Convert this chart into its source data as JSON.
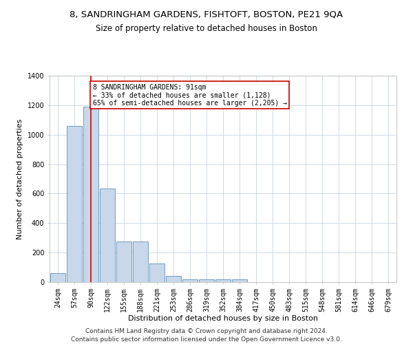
{
  "title1": "8, SANDRINGHAM GARDENS, FISHTOFT, BOSTON, PE21 9QA",
  "title2": "Size of property relative to detached houses in Boston",
  "xlabel": "Distribution of detached houses by size in Boston",
  "ylabel": "Number of detached properties",
  "footnote": "Contains HM Land Registry data © Crown copyright and database right 2024.\nContains public sector information licensed under the Open Government Licence v3.0.",
  "bin_labels": [
    "24sqm",
    "57sqm",
    "90sqm",
    "122sqm",
    "155sqm",
    "188sqm",
    "221sqm",
    "253sqm",
    "286sqm",
    "319sqm",
    "352sqm",
    "384sqm",
    "417sqm",
    "450sqm",
    "483sqm",
    "515sqm",
    "548sqm",
    "581sqm",
    "614sqm",
    "646sqm",
    "679sqm"
  ],
  "bar_values": [
    60,
    1060,
    1190,
    635,
    275,
    275,
    125,
    40,
    20,
    20,
    20,
    20,
    0,
    0,
    0,
    0,
    0,
    0,
    0,
    0,
    0
  ],
  "bar_color": "#c8d8ea",
  "bar_edge_color": "#6090b8",
  "highlight_bin_index": 2,
  "highlight_line_color": "#cc0000",
  "annotation_text": "8 SANDRINGHAM GARDENS: 91sqm\n← 33% of detached houses are smaller (1,128)\n65% of semi-detached houses are larger (2,205) →",
  "annotation_box_color": "#ffffff",
  "annotation_box_edge_color": "#cc0000",
  "ylim": [
    0,
    1400
  ],
  "yticks": [
    0,
    200,
    400,
    600,
    800,
    1000,
    1200,
    1400
  ],
  "background_color": "#ffffff",
  "grid_color": "#c8d4e0",
  "title1_fontsize": 9.5,
  "title2_fontsize": 8.5,
  "axis_label_fontsize": 8,
  "tick_fontsize": 7,
  "annotation_fontsize": 7,
  "footnote_fontsize": 6.5
}
